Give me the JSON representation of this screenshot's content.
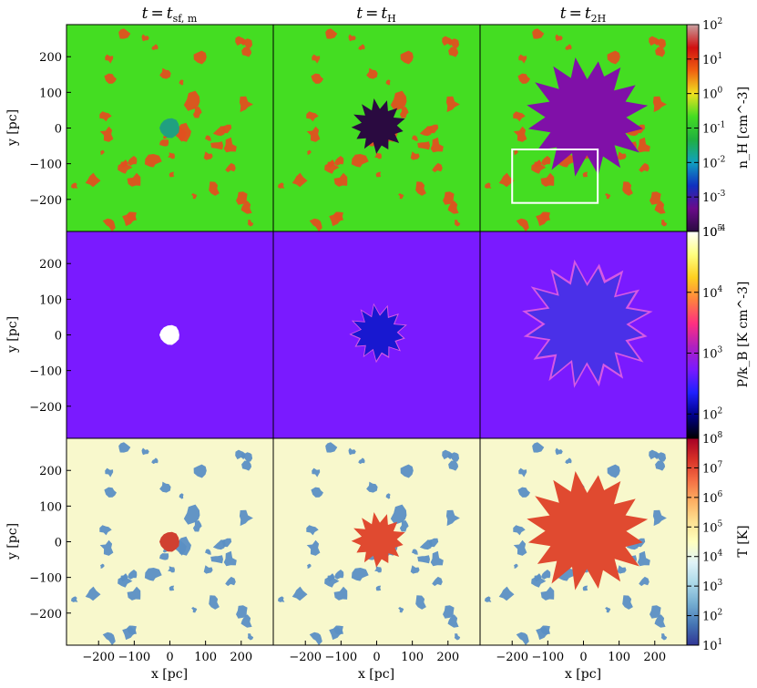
{
  "chart_data": {
    "type": "heatmap",
    "columns": [
      {
        "title_var": "t",
        "title_eq": "=",
        "title_rhs": "t",
        "title_sub": "sf, m"
      },
      {
        "title_var": "t",
        "title_eq": "=",
        "title_rhs": "t",
        "title_sub": "H"
      },
      {
        "title_var": "t",
        "title_eq": "=",
        "title_rhs": "t",
        "title_sub": "2H"
      }
    ],
    "xlabel": "x [pc]",
    "ylabel": "y [pc]",
    "xlim": [
      -290,
      290
    ],
    "ylim": [
      -290,
      290
    ],
    "x_ticks": [
      -200,
      -100,
      0,
      100,
      200
    ],
    "x_tick_labels": [
      "−200",
      "−100",
      "0",
      "100",
      "200"
    ],
    "y_ticks": [
      200,
      100,
      0,
      -100,
      -200
    ],
    "y_tick_labels": [
      "200",
      "100",
      "0",
      "−100",
      "−200"
    ],
    "rows": [
      {
        "quantity": "density",
        "colorbar_label": "n_H [cm^-3]",
        "log_scale": true,
        "range_exp": [
          -4,
          2
        ],
        "colorbar_tick_labels": [
          {
            "base": "10",
            "exp": "2"
          },
          {
            "base": "10",
            "exp": "1"
          },
          {
            "base": "10",
            "exp": "0"
          },
          {
            "base": "10",
            "exp": "-1"
          },
          {
            "base": "10",
            "exp": "-2"
          },
          {
            "base": "10",
            "exp": "-3"
          },
          {
            "base": "10",
            "exp": "-4"
          }
        ],
        "colormap": [
          "#2a0a40",
          "#6a0a8a",
          "#1030c0",
          "#10a0c0",
          "#20b040",
          "#44dd22",
          "#f0e020",
          "#f06010",
          "#d01010",
          "#c8a0a0"
        ],
        "background_color": "#44dd22",
        "bubble_color": [
          "#20a080",
          "#2a0a40",
          "#8010a8"
        ],
        "clump_color": "#e05020"
      },
      {
        "quantity": "pressure",
        "colorbar_label": "P/k_B [K cm^-3]",
        "log_scale": true,
        "range_exp": [
          1.6,
          5
        ],
        "colorbar_tick_labels": [
          {
            "base": "10",
            "exp": "5"
          },
          {
            "base": "10",
            "exp": "4"
          },
          {
            "base": "10",
            "exp": "3"
          },
          {
            "base": "10",
            "exp": "2"
          }
        ],
        "colormap": [
          "#000000",
          "#000088",
          "#2020ff",
          "#7a1aff",
          "#b020c0",
          "#ff3080",
          "#ff8040",
          "#ffd020",
          "#ffff80",
          "#ffffff"
        ],
        "background_color": "#7a1aff",
        "bubble_color": [
          "#ffffff",
          "#1818d0",
          "#4a30e8"
        ],
        "rim_color": "#e060e0"
      },
      {
        "quantity": "temperature",
        "colorbar_label": "T [K]",
        "log_scale": true,
        "range_exp": [
          1,
          8
        ],
        "colorbar_tick_labels": [
          {
            "base": "10",
            "exp": "8"
          },
          {
            "base": "10",
            "exp": "7"
          },
          {
            "base": "10",
            "exp": "6"
          },
          {
            "base": "10",
            "exp": "5"
          },
          {
            "base": "10",
            "exp": "4"
          },
          {
            "base": "10",
            "exp": "3"
          },
          {
            "base": "10",
            "exp": "2"
          },
          {
            "base": "10",
            "exp": "1"
          }
        ],
        "colormap": [
          "#313695",
          "#4575b4",
          "#74add1",
          "#abd9e9",
          "#e0f3f8",
          "#ffffbf",
          "#fee090",
          "#fdae61",
          "#f46d43",
          "#d73027",
          "#a50026"
        ],
        "background_color": "#f8f8cc",
        "bubble_color": [
          "#d04030",
          "#e04a30",
          "#e04a30"
        ],
        "clump_color": "#5b8fc4"
      }
    ],
    "bubble_radius_pc": [
      28,
      62,
      140
    ],
    "bubble_center_pc": [
      [
        0,
        0
      ],
      [
        5,
        5
      ],
      [
        10,
        30
      ]
    ],
    "annotation": {
      "type": "rectangle",
      "panel": "row1-col3",
      "x_range_pc": [
        -200,
        40
      ],
      "y_range_pc": [
        -210,
        -60
      ],
      "color": "#ffffff"
    }
  }
}
